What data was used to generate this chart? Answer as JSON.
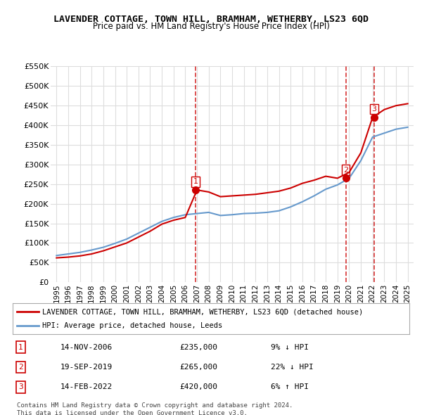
{
  "title": "LAVENDER COTTAGE, TOWN HILL, BRAMHAM, WETHERBY, LS23 6QD",
  "subtitle": "Price paid vs. HM Land Registry's House Price Index (HPI)",
  "ylim": [
    0,
    550000
  ],
  "yticks": [
    0,
    50000,
    100000,
    150000,
    200000,
    250000,
    300000,
    350000,
    400000,
    450000,
    500000,
    550000
  ],
  "ylabel_format": "£{0}K",
  "background_color": "#ffffff",
  "grid_color": "#dddddd",
  "sale_dates": [
    "2006-11-14",
    "2019-09-19",
    "2022-02-14"
  ],
  "sale_prices": [
    235000,
    265000,
    420000
  ],
  "sale_labels": [
    "1",
    "2",
    "3"
  ],
  "sale_date_strs": [
    "14-NOV-2006",
    "19-SEP-2019",
    "14-FEB-2022"
  ],
  "sale_price_strs": [
    "£235,000",
    "£265,000",
    "£420,000"
  ],
  "sale_hpi_strs": [
    "9% ↓ HPI",
    "22% ↓ HPI",
    "6% ↑ HPI"
  ],
  "red_line_color": "#cc0000",
  "blue_line_color": "#6699cc",
  "marker_color_red": "#cc0000",
  "marker_color_blue": "#6699cc",
  "vline_color": "#cc0000",
  "legend_label_red": "LAVENDER COTTAGE, TOWN HILL, BRAMHAM, WETHERBY, LS23 6QD (detached house)",
  "legend_label_blue": "HPI: Average price, detached house, Leeds",
  "footer_text": "Contains HM Land Registry data © Crown copyright and database right 2024.\nThis data is licensed under the Open Government Licence v3.0.",
  "hpi_years": [
    1995,
    1996,
    1997,
    1998,
    1999,
    2000,
    2001,
    2002,
    2003,
    2004,
    2005,
    2006,
    2007,
    2008,
    2009,
    2010,
    2011,
    2012,
    2013,
    2014,
    2015,
    2016,
    2017,
    2018,
    2019,
    2020,
    2021,
    2022,
    2023,
    2024,
    2025
  ],
  "hpi_values": [
    68000,
    72000,
    76000,
    82000,
    89000,
    99000,
    110000,
    125000,
    140000,
    155000,
    165000,
    172000,
    175000,
    178000,
    170000,
    172000,
    175000,
    176000,
    178000,
    182000,
    192000,
    205000,
    220000,
    237000,
    248000,
    265000,
    310000,
    370000,
    380000,
    390000,
    395000
  ],
  "red_years": [
    1995,
    1996,
    1997,
    1998,
    1999,
    2000,
    2001,
    2002,
    2003,
    2004,
    2005,
    2006,
    2007,
    2008,
    2009,
    2010,
    2011,
    2012,
    2013,
    2014,
    2015,
    2016,
    2017,
    2018,
    2019,
    2020,
    2021,
    2022,
    2023,
    2024,
    2025
  ],
  "red_values": [
    62000,
    64000,
    67000,
    72000,
    80000,
    90000,
    100000,
    115000,
    130000,
    148000,
    158000,
    165000,
    235000,
    230000,
    218000,
    220000,
    222000,
    224000,
    228000,
    232000,
    240000,
    252000,
    260000,
    270000,
    265000,
    280000,
    330000,
    420000,
    440000,
    450000,
    455000
  ],
  "xtick_years": [
    1995,
    1996,
    1997,
    1998,
    1999,
    2000,
    2001,
    2002,
    2003,
    2004,
    2005,
    2006,
    2007,
    2008,
    2009,
    2010,
    2011,
    2012,
    2013,
    2014,
    2015,
    2016,
    2017,
    2018,
    2019,
    2020,
    2021,
    2022,
    2023,
    2024,
    2025
  ]
}
